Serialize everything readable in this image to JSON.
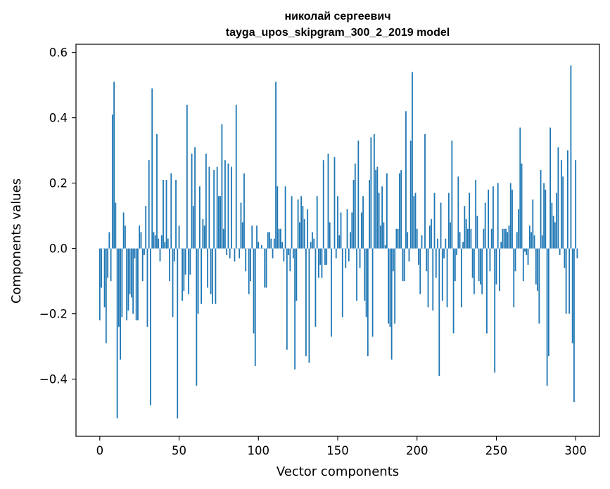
{
  "chart_data": {
    "type": "bar",
    "title_line1": "николай сергеевич",
    "title_line2": "tayga_upos_skipgram_300_2_2019 model",
    "xlabel": "Vector components",
    "ylabel": "Components values",
    "xlim": [
      -15,
      315
    ],
    "ylim": [
      -0.575,
      0.625
    ],
    "xticks": [
      0,
      50,
      100,
      150,
      200,
      250,
      300
    ],
    "xtick_labels": [
      "0",
      "50",
      "100",
      "150",
      "200",
      "250",
      "300"
    ],
    "yticks": [
      -0.4,
      -0.2,
      0.0,
      0.2,
      0.4,
      0.6
    ],
    "ytick_labels": [
      "−0.4",
      "−0.2",
      "0.0",
      "0.2",
      "0.4",
      "0.6"
    ],
    "grid": false,
    "bar_color": "#1f77b4",
    "values": [
      -0.22,
      -0.12,
      0.0,
      -0.18,
      -0.29,
      -0.09,
      0.05,
      -0.1,
      0.41,
      0.51,
      0.14,
      -0.52,
      -0.24,
      -0.34,
      -0.21,
      0.11,
      0.07,
      -0.22,
      -0.19,
      -0.14,
      -0.15,
      -0.2,
      -0.03,
      -0.22,
      -0.22,
      0.07,
      0.05,
      -0.1,
      -0.02,
      0.13,
      -0.24,
      0.27,
      -0.48,
      0.49,
      0.05,
      0.04,
      0.35,
      0.03,
      -0.04,
      0.04,
      0.21,
      0.02,
      0.21,
      0.03,
      -0.1,
      0.23,
      -0.21,
      -0.04,
      0.21,
      -0.52,
      0.07,
      0.0,
      -0.16,
      -0.13,
      -0.08,
      0.44,
      -0.14,
      -0.08,
      0.29,
      0.13,
      0.31,
      -0.42,
      -0.2,
      0.19,
      -0.17,
      0.09,
      0.07,
      0.29,
      -0.12,
      0.25,
      -0.14,
      -0.17,
      0.24,
      -0.17,
      0.25,
      0.16,
      0.16,
      0.38,
      0.06,
      0.27,
      -0.02,
      0.26,
      -0.03,
      0.25,
      0.0,
      -0.04,
      0.44,
      0.0,
      -0.03,
      0.14,
      0.08,
      0.23,
      -0.07,
      0.0,
      -0.14,
      -0.1,
      0.07,
      -0.26,
      -0.36,
      0.07,
      0.02,
      0.0,
      0.01,
      0.0,
      -0.12,
      -0.12,
      0.05,
      0.05,
      0.03,
      -0.03,
      0.03,
      0.51,
      0.19,
      0.06,
      0.06,
      0.02,
      -0.04,
      0.19,
      -0.31,
      -0.02,
      -0.07,
      0.16,
      -0.03,
      -0.37,
      -0.16,
      0.15,
      0.08,
      0.16,
      0.13,
      0.09,
      -0.33,
      0.12,
      -0.35,
      0.02,
      0.05,
      0.03,
      -0.24,
      0.16,
      -0.09,
      -0.05,
      -0.09,
      0.27,
      -0.05,
      -0.05,
      0.29,
      0.08,
      -0.27,
      0.0,
      0.28,
      -0.03,
      0.16,
      0.04,
      0.11,
      -0.21,
      0.0,
      -0.06,
      0.12,
      -0.04,
      0.05,
      0.11,
      0.21,
      0.26,
      -0.16,
      0.33,
      -0.06,
      0.11,
      0.16,
      -0.16,
      -0.21,
      -0.33,
      0.21,
      0.34,
      -0.27,
      0.35,
      0.24,
      0.25,
      0.17,
      0.07,
      0.19,
      0.08,
      0.01,
      0.23,
      -0.23,
      -0.24,
      -0.34,
      -0.07,
      -0.23,
      0.06,
      0.06,
      0.23,
      0.24,
      -0.1,
      -0.1,
      0.42,
      0.05,
      -0.04,
      0.33,
      0.54,
      0.16,
      0.17,
      0.06,
      -0.05,
      -0.14,
      0.04,
      0.0,
      0.35,
      -0.07,
      -0.18,
      0.07,
      0.09,
      -0.19,
      0.17,
      -0.09,
      0.03,
      -0.39,
      0.14,
      -0.16,
      -0.03,
      0.03,
      -0.18,
      0.17,
      0.08,
      0.33,
      -0.26,
      -0.1,
      -0.02,
      0.22,
      0.05,
      -0.18,
      0.02,
      0.13,
      0.09,
      0.06,
      0.17,
      0.06,
      -0.09,
      -0.14,
      0.21,
      0.1,
      -0.1,
      -0.11,
      -0.14,
      0.06,
      0.14,
      -0.26,
      0.18,
      -0.07,
      0.06,
      0.19,
      -0.38,
      -0.11,
      0.2,
      -0.13,
      0.02,
      0.06,
      0.06,
      0.06,
      0.05,
      0.07,
      0.2,
      0.18,
      -0.18,
      -0.07,
      0.05,
      0.12,
      0.37,
      0.26,
      -0.1,
      -0.01,
      -0.02,
      -0.05,
      0.07,
      0.05,
      0.15,
      0.04,
      -0.11,
      -0.13,
      -0.23,
      0.24,
      0.04,
      0.2,
      0.18,
      -0.42,
      -0.33,
      0.37,
      0.14,
      0.1,
      0.08,
      0.17,
      0.31,
      -0.02,
      0.27,
      0.22,
      -0.06,
      -0.2,
      0.3,
      -0.2,
      0.56,
      -0.29,
      -0.47,
      0.27,
      -0.03
    ]
  }
}
